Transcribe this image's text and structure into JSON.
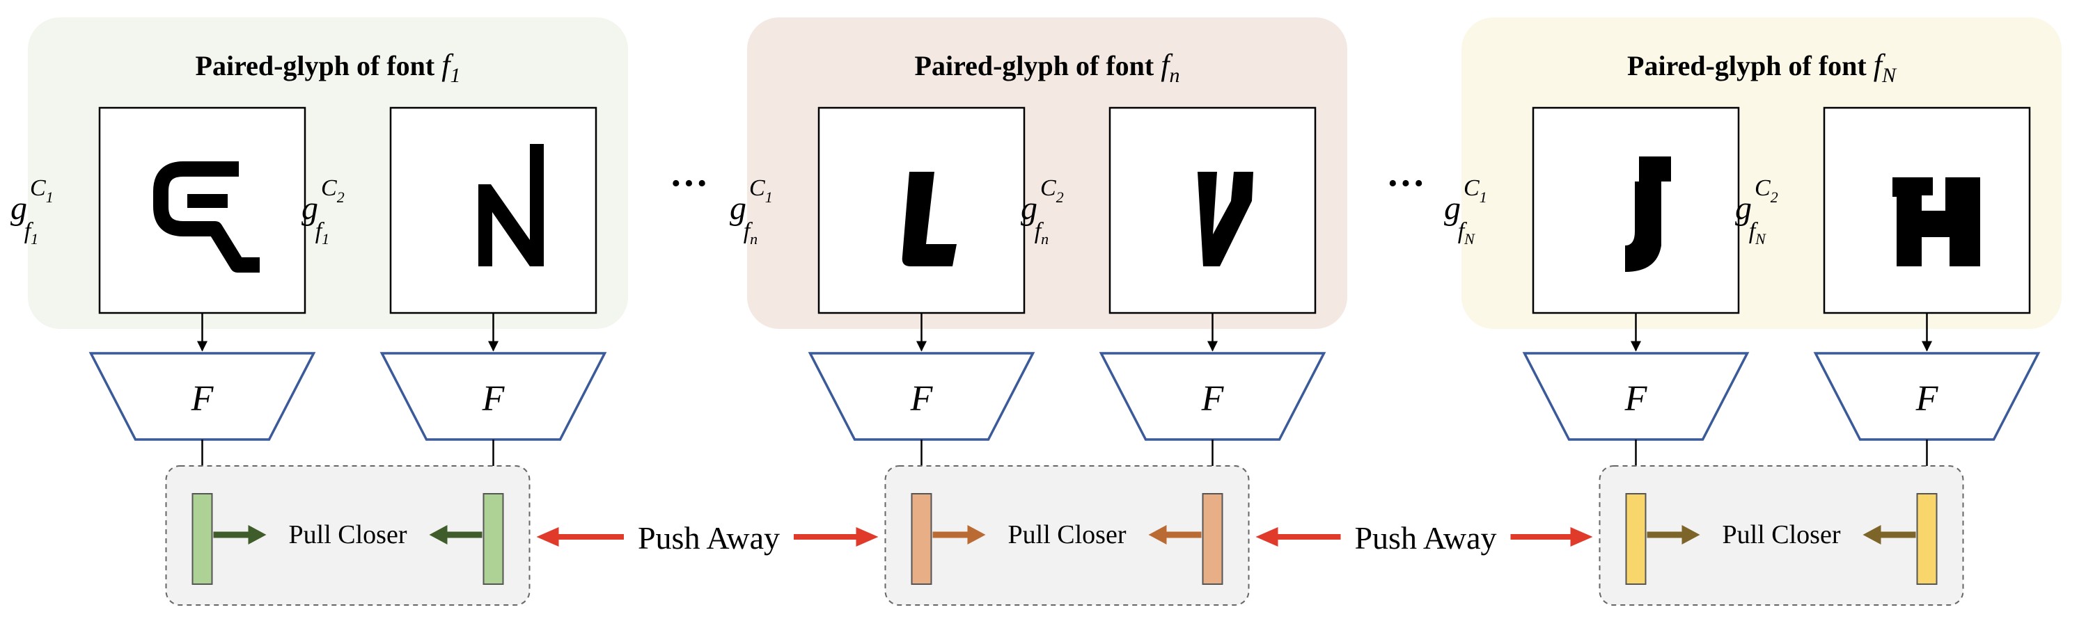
{
  "groups": [
    {
      "title": "Paired-glyph of font ",
      "title_sym": "f",
      "title_sub": "1",
      "bg": "#f3f6ee",
      "glyphs": [
        {
          "char": "G",
          "sup": "1",
          "sub": "1"
        },
        {
          "char": "N",
          "sup": "2",
          "sub": "1"
        }
      ],
      "feature_color": "#aed196",
      "arrow_color": "#3f5d2a"
    },
    {
      "title": "Paired-glyph of font ",
      "title_sym": "f",
      "title_sub": "n",
      "bg": "#f4e8e2",
      "glyphs": [
        {
          "char": "L",
          "sup": "1",
          "sub": "n"
        },
        {
          "char": "V",
          "sup": "2",
          "sub": "n"
        }
      ],
      "feature_color": "#e8ae86",
      "arrow_color": "#b96b33"
    },
    {
      "title": "Paired-glyph of font ",
      "title_sym": "f",
      "title_sub": "N",
      "bg": "#fbf8e8",
      "glyphs": [
        {
          "char": "J",
          "sup": "1",
          "sub": "N"
        },
        {
          "char": "H",
          "sup": "2",
          "sub": "N"
        }
      ],
      "feature_color": "#f8d66c",
      "arrow_color": "#7d6428"
    }
  ],
  "glyph_symbol": "g",
  "class_symbol": "C",
  "font_symbol": "f",
  "encoder_label": "F",
  "pull_label": "Pull Closer",
  "push_label": "Push Away",
  "ellipsis": "···",
  "colors": {
    "encoder_stroke": "#3a5a9a",
    "push_arrow": "#e03a2a",
    "pull_box_bg": "#f2f2f2"
  }
}
